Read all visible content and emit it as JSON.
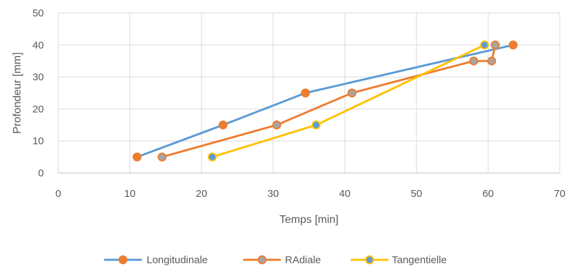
{
  "chart_data": {
    "type": "scatter",
    "title": "",
    "xlabel": "Temps [min]",
    "ylabel": "Profondeur [mm]",
    "xlim": [
      0,
      70
    ],
    "ylim": [
      0,
      50
    ],
    "xticks": [
      "0",
      "10",
      "20",
      "30",
      "40",
      "50",
      "60",
      "70"
    ],
    "yticks": [
      "0",
      "10",
      "20",
      "30",
      "40",
      "50"
    ],
    "grid": "vertical and horizontal",
    "legend_position": "bottom",
    "series": [
      {
        "name": "Longitudinale",
        "line_color": "#5B9BD5",
        "marker_color": "#ED7D31",
        "marker_border": "#ED7D31",
        "points": [
          {
            "x": 11,
            "y": 5
          },
          {
            "x": 23,
            "y": 15
          },
          {
            "x": 34.5,
            "y": 25
          },
          {
            "x": 63.5,
            "y": 40
          }
        ]
      },
      {
        "name": "RAdiale",
        "line_color": "#ED7D31",
        "marker_color": "#A5A5A5",
        "marker_border": "#ED7D31",
        "points": [
          {
            "x": 14.5,
            "y": 5
          },
          {
            "x": 30.5,
            "y": 15
          },
          {
            "x": 41,
            "y": 25
          },
          {
            "x": 58,
            "y": 35
          },
          {
            "x": 60.5,
            "y": 35
          },
          {
            "x": 61,
            "y": 40
          }
        ]
      },
      {
        "name": "Tangentielle",
        "line_color": "#FFC000",
        "marker_color": "#5B9BD5",
        "marker_border": "#FFC000",
        "points": [
          {
            "x": 21.5,
            "y": 5
          },
          {
            "x": 36,
            "y": 15
          },
          {
            "x": 59.5,
            "y": 40
          }
        ]
      }
    ]
  }
}
